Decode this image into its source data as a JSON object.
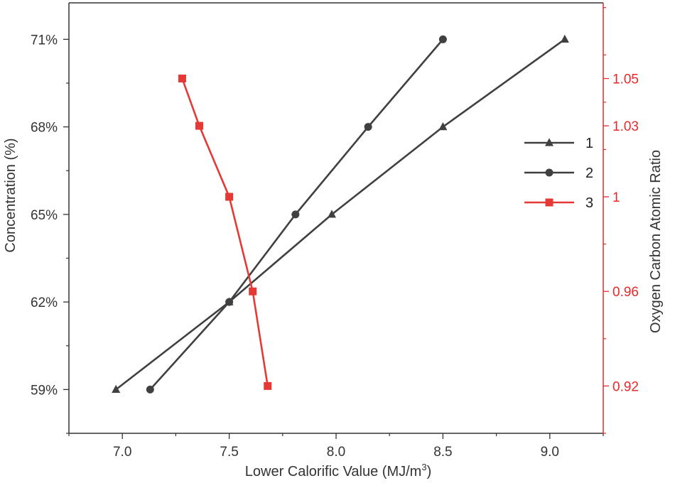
{
  "chart_data": {
    "type": "line",
    "title": "",
    "xlabel": "Lower Calorific Value (MJ/m",
    "xlabel_sup": "3",
    "xlabel_end": ")",
    "ylabel_left": "Concentration (%)",
    "ylabel_right": "Oxygen Carbon Atomic Ratio",
    "xlim": [
      6.75,
      9.25
    ],
    "ylim_left": [
      57.5,
      72.25
    ],
    "ylim_right": [
      0.9,
      1.082
    ],
    "x_ticks": [
      7.0,
      7.5,
      8.0,
      8.5,
      9.0
    ],
    "x_tick_labels": [
      "7.0",
      "7.5",
      "8.0",
      "8.5",
      "9.0"
    ],
    "y_left_ticks": [
      59,
      62,
      65,
      68,
      71
    ],
    "y_left_tick_labels": [
      "59%",
      "62%",
      "65%",
      "68%",
      "71%"
    ],
    "y_right_ticks": [
      0.92,
      0.96,
      1.0,
      1.03,
      1.05
    ],
    "y_right_tick_labels": [
      "0.92",
      "0.96",
      "1",
      "1.03",
      "1.05"
    ],
    "colors": {
      "axis_left": "#333333",
      "axis_right": "#e8292b",
      "series_gray": "#404040",
      "series_red": "#e53935"
    },
    "legend_position": "right-center",
    "series": [
      {
        "name": "1",
        "axis": "left",
        "marker": "triangle",
        "color": "#404040",
        "x": [
          6.97,
          7.5,
          7.98,
          8.5,
          9.07
        ],
        "y": [
          59,
          62,
          65,
          68,
          71
        ]
      },
      {
        "name": "2",
        "axis": "left",
        "marker": "circle",
        "color": "#404040",
        "x": [
          7.13,
          7.5,
          7.81,
          8.15,
          8.5
        ],
        "y": [
          59,
          62,
          65,
          68,
          71
        ]
      },
      {
        "name": "3",
        "axis": "right",
        "marker": "square",
        "color": "#e53935",
        "x": [
          7.28,
          7.36,
          7.5,
          7.61,
          7.68
        ],
        "y": [
          1.05,
          1.03,
          1.0,
          0.96,
          0.92
        ]
      }
    ]
  }
}
